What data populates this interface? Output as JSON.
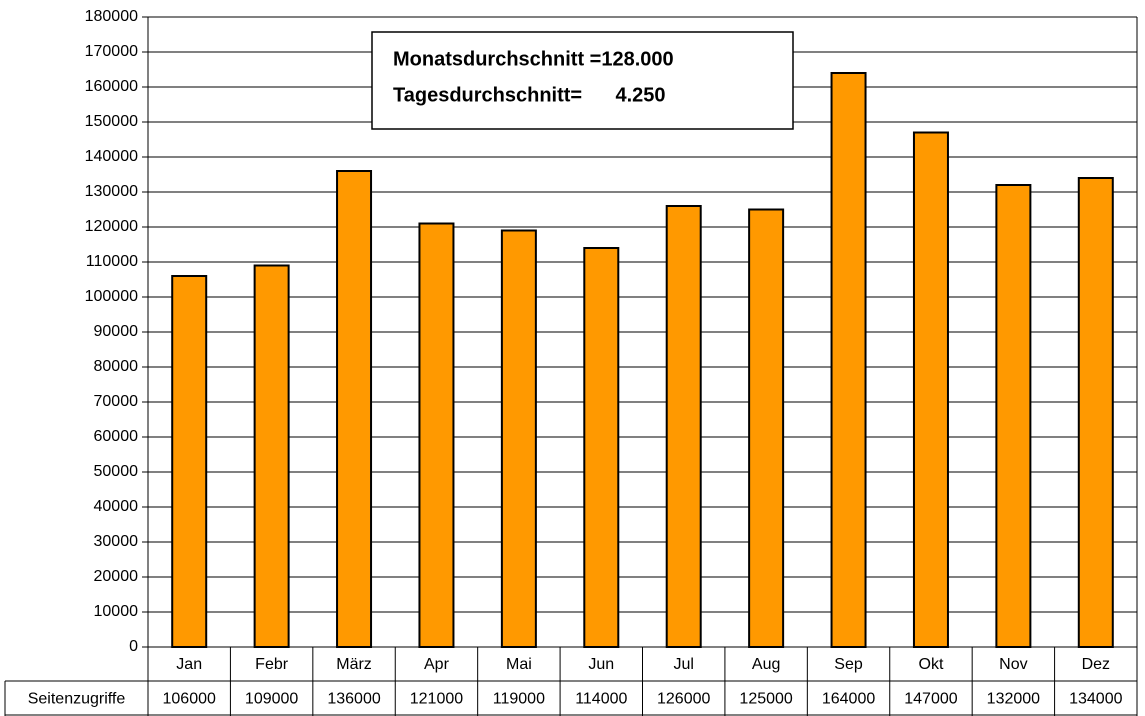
{
  "chart_data": {
    "type": "bar",
    "annotations": [
      "Monatsdurchschnitt =128.000",
      "Tagesdurchschnitt=      4.250"
    ],
    "categories": [
      "Jan",
      "Febr",
      "März",
      "Apr",
      "Mai",
      "Jun",
      "Jul",
      "Aug",
      "Sep",
      "Okt",
      "Nov",
      "Dez"
    ],
    "series": [
      {
        "name": "Seitenzugriffe",
        "color": "#ff9900",
        "values": [
          106000,
          109000,
          136000,
          121000,
          119000,
          114000,
          126000,
          125000,
          164000,
          147000,
          132000,
          134000
        ]
      }
    ],
    "ylim": [
      0,
      180000
    ],
    "yticks": [
      0,
      10000,
      20000,
      30000,
      40000,
      50000,
      60000,
      70000,
      80000,
      90000,
      100000,
      110000,
      120000,
      130000,
      140000,
      150000,
      160000,
      170000,
      180000
    ],
    "grid": true
  }
}
